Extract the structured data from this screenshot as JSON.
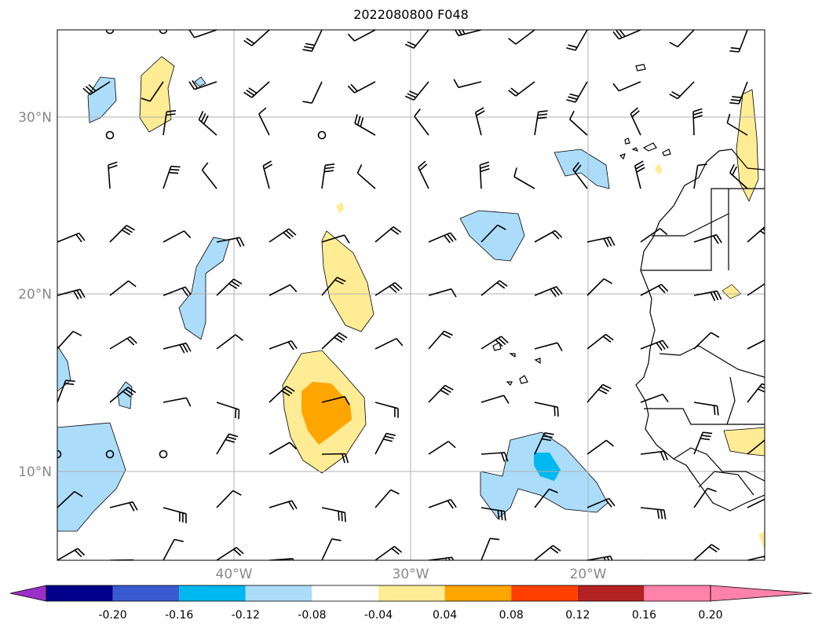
{
  "title": "2022080800 F048",
  "map": {
    "lon_range": [
      -50,
      -10
    ],
    "lat_range": [
      5,
      35
    ],
    "lat_ticks": [
      {
        "value": 30,
        "label": "30°N"
      },
      {
        "value": 20,
        "label": "20°N"
      },
      {
        "value": 10,
        "label": "10°N"
      }
    ],
    "lon_ticks": [
      {
        "value": -40,
        "label": "40°W"
      },
      {
        "value": -30,
        "label": "30°W"
      },
      {
        "value": -20,
        "label": "20°W"
      }
    ]
  },
  "colorbar": {
    "levels": [
      "-0.20",
      "-0.16",
      "-0.12",
      "-0.08",
      "-0.04",
      "0.04",
      "0.08",
      "0.12",
      "0.16",
      "0.20"
    ],
    "colors": [
      "#9b30c8",
      "#00008b",
      "#3a5bcf",
      "#00b8f0",
      "#abdcfa",
      "#ffffff",
      "#ffec94",
      "#ffa500",
      "#ff4000",
      "#b22222",
      "#ff82ab"
    ],
    "extend": "both"
  },
  "colors": {
    "grid": "#b0b0b0",
    "coast": "#000000",
    "barb": "#000000"
  }
}
